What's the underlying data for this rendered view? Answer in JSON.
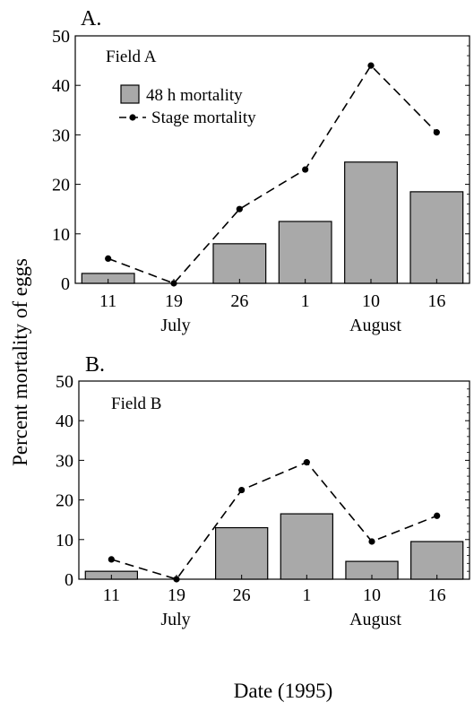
{
  "ylabel": "Percent mortality of eggs",
  "xlabel": "Date (1995)",
  "colors": {
    "bar_fill": "#a9a9a9",
    "bar_stroke": "#000000",
    "line": "#000000"
  },
  "chart_data": [
    {
      "type": "bar",
      "panel_label": "A.",
      "title": "Field A",
      "categories": [
        "11",
        "19",
        "26",
        "1",
        "10",
        "16"
      ],
      "month_labels": [
        "July",
        "August"
      ],
      "ylim": [
        0,
        50
      ],
      "yticks": [
        "0",
        "10",
        "20",
        "30",
        "40",
        "50"
      ],
      "legend": {
        "bar": "48 h mortality",
        "line": "Stage mortality"
      },
      "series": [
        {
          "name": "48 h mortality",
          "type": "bar",
          "values": [
            2,
            0,
            8,
            12.5,
            24.5,
            18.5
          ]
        },
        {
          "name": "Stage mortality",
          "type": "line",
          "values": [
            5,
            0,
            15,
            23,
            44,
            30.5
          ]
        }
      ]
    },
    {
      "type": "bar",
      "panel_label": "B.",
      "title": "Field B",
      "categories": [
        "11",
        "19",
        "26",
        "1",
        "10",
        "16"
      ],
      "month_labels": [
        "July",
        "August"
      ],
      "ylim": [
        0,
        50
      ],
      "yticks": [
        "0",
        "10",
        "20",
        "30",
        "40",
        "50"
      ],
      "series": [
        {
          "name": "48 h mortality",
          "type": "bar",
          "values": [
            2,
            0,
            13,
            16.5,
            4.5,
            9.5
          ]
        },
        {
          "name": "Stage mortality",
          "type": "line",
          "values": [
            5,
            0,
            22.5,
            29.5,
            9.5,
            16
          ]
        }
      ]
    }
  ]
}
